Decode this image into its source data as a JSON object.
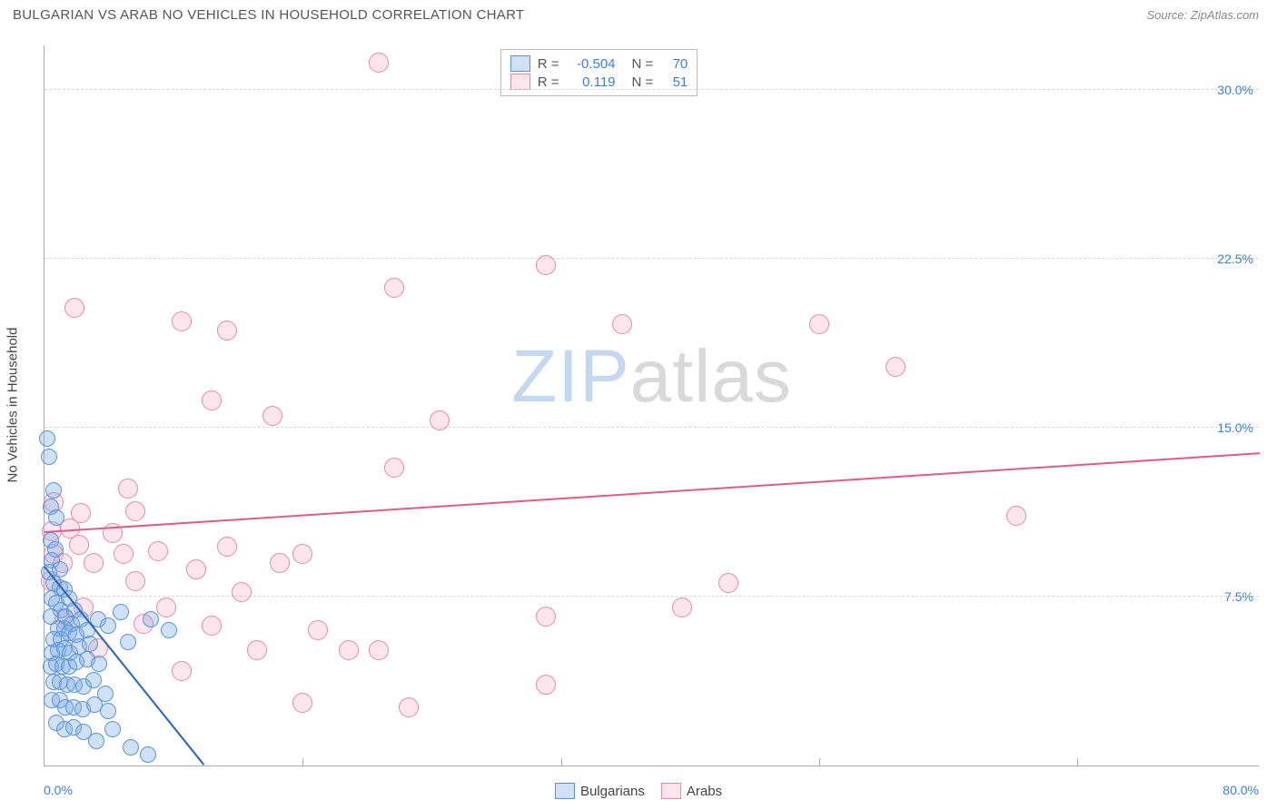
{
  "title": "BULGARIAN VS ARAB NO VEHICLES IN HOUSEHOLD CORRELATION CHART",
  "source": "Source: ZipAtlas.com",
  "ylabel": "No Vehicles in Household",
  "watermark_z": "ZIP",
  "watermark_rest": "atlas",
  "chart": {
    "type": "scatter",
    "xlim": [
      0,
      80
    ],
    "ylim": [
      0,
      32
    ],
    "xticks": [
      0,
      80
    ],
    "xtick_labels": [
      "0.0%",
      "80.0%"
    ],
    "xtick_minor": [
      17,
      34,
      51,
      68
    ],
    "yticks": [
      7.5,
      15.0,
      22.5,
      30.0
    ],
    "ytick_labels": [
      "7.5%",
      "15.0%",
      "22.5%",
      "30.0%"
    ],
    "background_color": "#ffffff",
    "grid_color": "#d8d8d8"
  },
  "series": {
    "bulgarians": {
      "label": "Bulgarians",
      "fill": "rgba(120,170,230,0.35)",
      "stroke": "#5a94d8",
      "trend_color": "#2563c9",
      "r_label": "R =",
      "r_value": "-0.504",
      "n_label": "N =",
      "n_value": "70",
      "marker_radius": 9,
      "trend": {
        "x1": 0,
        "y1": 8.8,
        "x2": 10.5,
        "y2": 0
      },
      "points": [
        [
          0.2,
          14.5
        ],
        [
          0.3,
          13.7
        ],
        [
          0.6,
          12.2
        ],
        [
          0.4,
          11.5
        ],
        [
          0.8,
          11.0
        ],
        [
          0.4,
          10.0
        ],
        [
          0.7,
          9.6
        ],
        [
          0.5,
          9.1
        ],
        [
          0.3,
          8.6
        ],
        [
          1.0,
          8.7
        ],
        [
          0.6,
          8.1
        ],
        [
          1.0,
          7.9
        ],
        [
          1.3,
          7.8
        ],
        [
          0.5,
          7.4
        ],
        [
          0.8,
          7.2
        ],
        [
          1.6,
          7.4
        ],
        [
          1.1,
          6.9
        ],
        [
          0.4,
          6.6
        ],
        [
          1.4,
          6.6
        ],
        [
          2.0,
          6.9
        ],
        [
          0.9,
          6.1
        ],
        [
          1.3,
          6.1
        ],
        [
          1.8,
          6.3
        ],
        [
          2.4,
          6.5
        ],
        [
          0.6,
          5.6
        ],
        [
          1.1,
          5.6
        ],
        [
          1.6,
          5.9
        ],
        [
          2.1,
          5.8
        ],
        [
          2.8,
          6.0
        ],
        [
          3.5,
          6.5
        ],
        [
          0.5,
          5.0
        ],
        [
          0.9,
          5.1
        ],
        [
          1.3,
          5.2
        ],
        [
          1.7,
          5.0
        ],
        [
          2.3,
          5.3
        ],
        [
          3.0,
          5.4
        ],
        [
          4.2,
          6.2
        ],
        [
          5.0,
          6.8
        ],
        [
          0.4,
          4.4
        ],
        [
          0.8,
          4.5
        ],
        [
          1.2,
          4.4
        ],
        [
          1.6,
          4.4
        ],
        [
          2.1,
          4.6
        ],
        [
          2.8,
          4.7
        ],
        [
          3.6,
          4.5
        ],
        [
          5.5,
          5.5
        ],
        [
          7.0,
          6.5
        ],
        [
          8.2,
          6.0
        ],
        [
          0.6,
          3.7
        ],
        [
          1.0,
          3.7
        ],
        [
          1.5,
          3.6
        ],
        [
          2.0,
          3.6
        ],
        [
          2.6,
          3.5
        ],
        [
          3.2,
          3.8
        ],
        [
          4.0,
          3.2
        ],
        [
          0.5,
          2.9
        ],
        [
          1.0,
          2.9
        ],
        [
          1.4,
          2.6
        ],
        [
          1.9,
          2.6
        ],
        [
          2.5,
          2.5
        ],
        [
          3.3,
          2.7
        ],
        [
          4.2,
          2.4
        ],
        [
          0.8,
          1.9
        ],
        [
          1.3,
          1.6
        ],
        [
          1.9,
          1.7
        ],
        [
          2.6,
          1.5
        ],
        [
          3.4,
          1.1
        ],
        [
          4.5,
          1.6
        ],
        [
          5.7,
          0.8
        ],
        [
          6.8,
          0.5
        ]
      ]
    },
    "arabs": {
      "label": "Arabs",
      "fill": "rgba(245,170,195,0.30)",
      "stroke": "#e48aa8",
      "trend_color": "#e05a8a",
      "r_label": "R =",
      "r_value": "0.119",
      "n_label": "N =",
      "n_value": "51",
      "marker_radius": 11,
      "trend": {
        "x1": 0,
        "y1": 10.3,
        "x2": 80,
        "y2": 13.8
      },
      "points": [
        [
          22,
          31.2
        ],
        [
          33,
          22.2
        ],
        [
          23,
          21.2
        ],
        [
          2,
          20.3
        ],
        [
          38,
          19.6
        ],
        [
          9,
          19.7
        ],
        [
          12,
          19.3
        ],
        [
          56,
          17.7
        ],
        [
          51,
          19.6
        ],
        [
          11,
          16.2
        ],
        [
          15,
          15.5
        ],
        [
          26,
          15.3
        ],
        [
          23,
          13.2
        ],
        [
          5.5,
          12.3
        ],
        [
          0.6,
          11.7
        ],
        [
          2.4,
          11.2
        ],
        [
          6,
          11.3
        ],
        [
          64,
          11.1
        ],
        [
          0.5,
          10.4
        ],
        [
          1.7,
          10.5
        ],
        [
          4.5,
          10.3
        ],
        [
          2.3,
          9.8
        ],
        [
          12,
          9.7
        ],
        [
          0.6,
          9.4
        ],
        [
          5.2,
          9.4
        ],
        [
          7.5,
          9.5
        ],
        [
          17,
          9.4
        ],
        [
          1.2,
          9.0
        ],
        [
          3.2,
          9.0
        ],
        [
          10,
          8.7
        ],
        [
          15.5,
          9.0
        ],
        [
          0.4,
          8.2
        ],
        [
          6,
          8.2
        ],
        [
          13,
          7.7
        ],
        [
          45,
          8.1
        ],
        [
          2.6,
          7.0
        ],
        [
          8,
          7.0
        ],
        [
          33,
          6.6
        ],
        [
          42,
          7.0
        ],
        [
          1.3,
          6.5
        ],
        [
          6.5,
          6.3
        ],
        [
          11,
          6.2
        ],
        [
          18,
          6.0
        ],
        [
          3.5,
          5.2
        ],
        [
          14,
          5.1
        ],
        [
          20,
          5.1
        ],
        [
          22,
          5.1
        ],
        [
          9,
          4.2
        ],
        [
          33,
          3.6
        ],
        [
          17,
          2.8
        ],
        [
          24,
          2.6
        ]
      ]
    }
  },
  "legend_bottom": [
    "Bulgarians",
    "Arabs"
  ]
}
